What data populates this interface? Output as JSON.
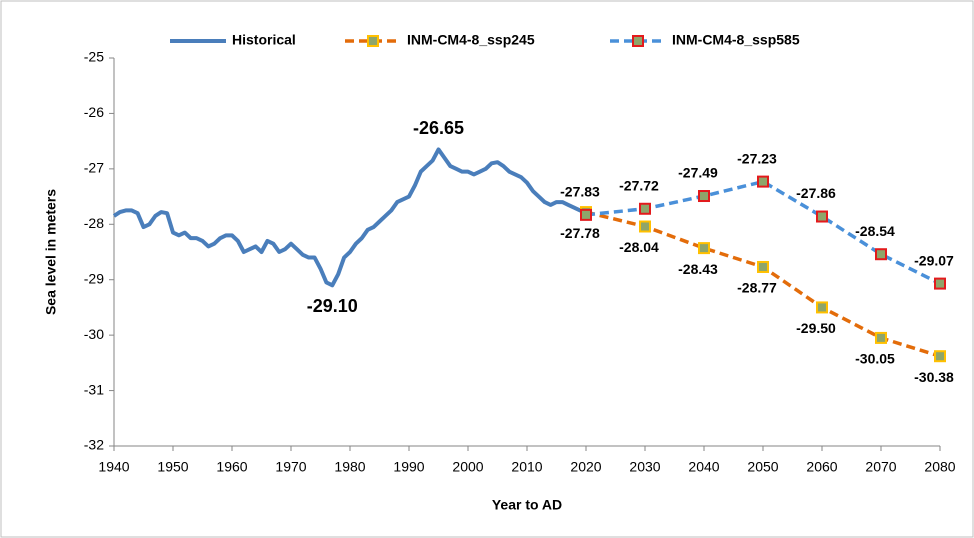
{
  "chart_data": {
    "type": "line",
    "x_label": "Year to AD",
    "y_label": "Sea level in meters",
    "xlim": [
      1940,
      2080
    ],
    "xticks": [
      1940,
      1950,
      1960,
      1970,
      1980,
      1990,
      2000,
      2010,
      2020,
      2030,
      2040,
      2050,
      2060,
      2070,
      2080
    ],
    "ylim": [
      -32,
      -25
    ],
    "yticks": [
      -25,
      -26,
      -27,
      -28,
      -29,
      -30,
      -31,
      -32
    ],
    "legend": "top",
    "grid": false,
    "series": [
      {
        "name": "Historical",
        "color": "#4a7ebb",
        "dashed": false,
        "x": [
          1940,
          1941,
          1942,
          1943,
          1944,
          1945,
          1946,
          1947,
          1948,
          1949,
          1950,
          1951,
          1952,
          1953,
          1954,
          1955,
          1956,
          1957,
          1958,
          1959,
          1960,
          1961,
          1962,
          1963,
          1964,
          1965,
          1966,
          1967,
          1968,
          1969,
          1970,
          1971,
          1972,
          1973,
          1974,
          1975,
          1976,
          1977,
          1978,
          1979,
          1980,
          1981,
          1982,
          1983,
          1984,
          1985,
          1986,
          1987,
          1988,
          1989,
          1990,
          1991,
          1992,
          1993,
          1994,
          1995,
          1996,
          1997,
          1998,
          1999,
          2000,
          2001,
          2002,
          2003,
          2004,
          2005,
          2006,
          2007,
          2008,
          2009,
          2010,
          2011,
          2012,
          2013,
          2014,
          2015,
          2016,
          2017,
          2018,
          2019,
          2020
        ],
        "values": [
          -27.85,
          -27.78,
          -27.75,
          -27.75,
          -27.8,
          -28.05,
          -28.0,
          -27.85,
          -27.78,
          -27.8,
          -28.15,
          -28.2,
          -28.15,
          -28.25,
          -28.25,
          -28.3,
          -28.4,
          -28.35,
          -28.25,
          -28.2,
          -28.2,
          -28.3,
          -28.5,
          -28.45,
          -28.4,
          -28.5,
          -28.3,
          -28.35,
          -28.5,
          -28.45,
          -28.35,
          -28.45,
          -28.55,
          -28.6,
          -28.6,
          -28.8,
          -29.05,
          -29.1,
          -28.9,
          -28.6,
          -28.5,
          -28.35,
          -28.25,
          -28.1,
          -28.05,
          -27.95,
          -27.85,
          -27.75,
          -27.6,
          -27.55,
          -27.5,
          -27.3,
          -27.05,
          -26.95,
          -26.85,
          -26.65,
          -26.8,
          -26.95,
          -27.0,
          -27.05,
          -27.05,
          -27.1,
          -27.05,
          -27.0,
          -26.9,
          -26.88,
          -26.95,
          -27.05,
          -27.1,
          -27.15,
          -27.25,
          -27.4,
          -27.5,
          -27.6,
          -27.65,
          -27.6,
          -27.6,
          -27.65,
          -27.7,
          -27.75,
          -27.8
        ],
        "value_labels": [
          null,
          null,
          null,
          null,
          null,
          null,
          null,
          null,
          null,
          null,
          null,
          null,
          null,
          null,
          null,
          null,
          null,
          null,
          null,
          null,
          null,
          null,
          null,
          null,
          null,
          null,
          null,
          null,
          null,
          null,
          null,
          null,
          null,
          null,
          null,
          null,
          null,
          "-29.10",
          null,
          null,
          null,
          null,
          null,
          null,
          null,
          null,
          null,
          null,
          null,
          null,
          null,
          null,
          null,
          null,
          null,
          "-26.65",
          null,
          null,
          null,
          null,
          null,
          null,
          null,
          null,
          null,
          null,
          null,
          null,
          null,
          null,
          null,
          null,
          null,
          null,
          null,
          null,
          null,
          null,
          null,
          null,
          null
        ]
      },
      {
        "name": "INM-CM4-8_ssp245",
        "color": "#e36c0a",
        "dashed": true,
        "marker_fill": "#8ea56a",
        "marker_edge": "#ffc000",
        "x": [
          2020,
          2030,
          2040,
          2050,
          2060,
          2070,
          2080
        ],
        "values": [
          -27.78,
          -28.04,
          -28.43,
          -28.77,
          -29.5,
          -30.05,
          -30.38
        ],
        "value_labels": [
          "-27.78",
          "-28.04",
          "-28.43",
          "-28.77",
          "-29.50",
          "-30.05",
          "-30.38"
        ]
      },
      {
        "name": "INM-CM4-8_ssp585",
        "color": "#4a90d9",
        "dashed": true,
        "marker_fill": "#8ea56a",
        "marker_edge": "#e31a1c",
        "x": [
          2020,
          2030,
          2040,
          2050,
          2060,
          2070,
          2080
        ],
        "values": [
          -27.83,
          -27.72,
          -27.49,
          -27.23,
          -27.86,
          -28.54,
          -29.07
        ],
        "value_labels": [
          "-27.83",
          "-27.72",
          "-27.49",
          "-27.23",
          "-27.86",
          "-28.54",
          "-29.07"
        ]
      }
    ]
  }
}
